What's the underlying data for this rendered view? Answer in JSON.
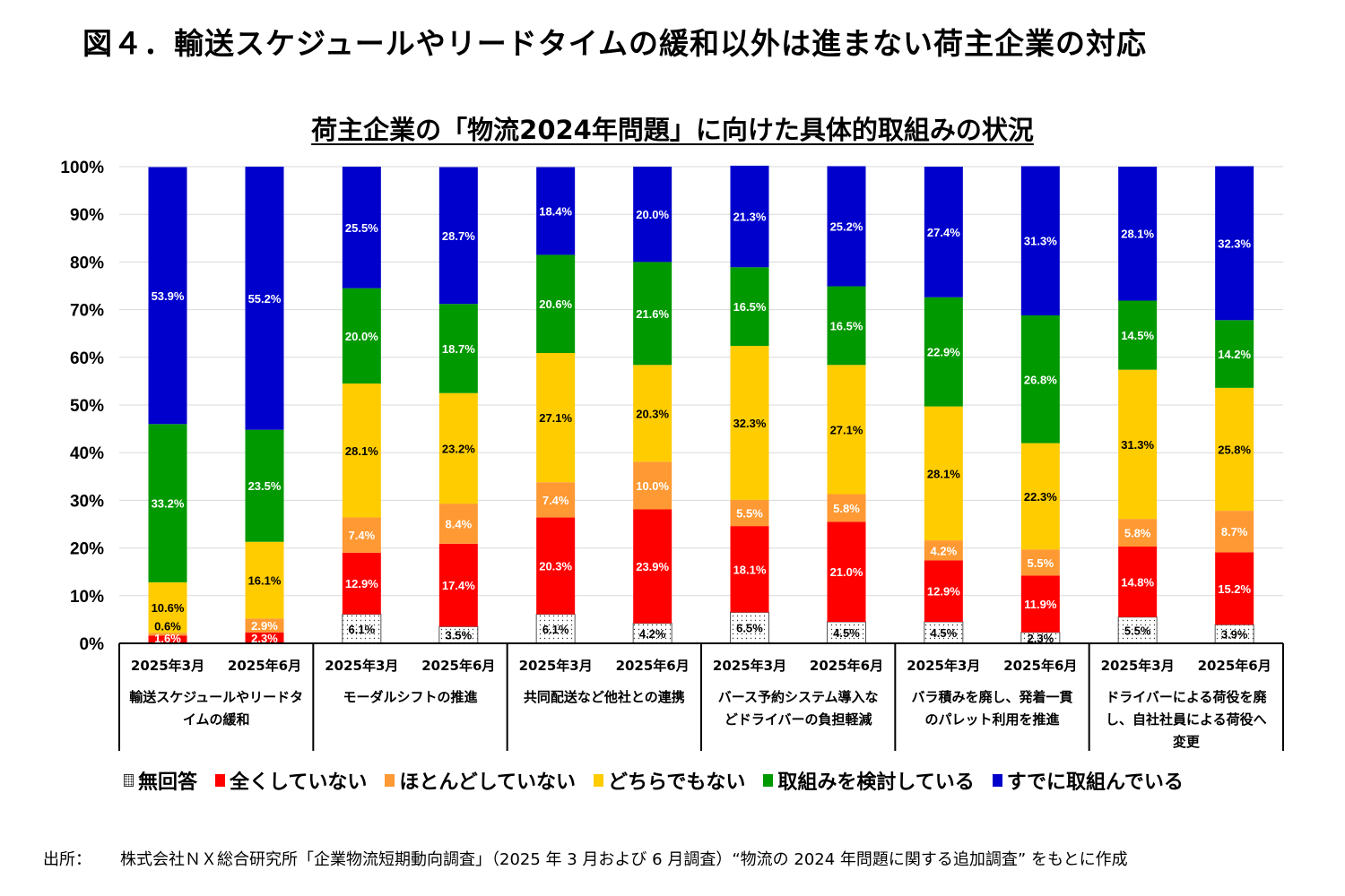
{
  "figure_title": "図４．輸送スケジュールやリードタイムの緩和以外は進まない荷主企業の対応",
  "source": {
    "label": "出所：",
    "text": "株式会社ＮＸ総合研究所「企業物流短期動向調査」（2025 年 3 月および 6 月調査）“物流の 2024 年問題に関する追加調査” をもとに作成"
  },
  "chart_data": {
    "type": "bar",
    "stacked": true,
    "percent_stacked": true,
    "title": "荷主企業の「物流2024年問題」に向けた具体的取組みの状況",
    "xlabel": "",
    "ylabel": "",
    "ylim": [
      0,
      100
    ],
    "yticks": [
      "0%",
      "10%",
      "20%",
      "30%",
      "40%",
      "50%",
      "60%",
      "70%",
      "80%",
      "90%",
      "100%"
    ],
    "grid": true,
    "legend_position": "bottom",
    "groups": [
      {
        "label": "輸送スケジュールやリードタイムの緩和",
        "label_lines": [
          "輸送スケジュールやリードタ",
          "イムの緩和"
        ]
      },
      {
        "label": "モーダルシフトの推進",
        "label_lines": [
          "モーダルシフトの推進"
        ]
      },
      {
        "label": "共同配送など他社との連携",
        "label_lines": [
          "共同配送など他社との連携"
        ]
      },
      {
        "label": "バース予約システム導入などドライバーの負担軽減",
        "label_lines": [
          "バース予約システム導入な",
          "どドライバーの負担軽減"
        ]
      },
      {
        "label": "バラ積みを廃し、発着一貫のパレット利用を推進",
        "label_lines": [
          "バラ積みを廃し、発着一貫",
          "のパレット利用を推進"
        ]
      },
      {
        "label": "ドライバーによる荷役を廃し、自社社員による荷役へ変更",
        "label_lines": [
          "ドライバーによる荷役を廃",
          "し、自社社員による荷役へ",
          "変更"
        ]
      }
    ],
    "periods": [
      "2025年3月",
      "2025年6月"
    ],
    "categories": [
      "輸送スケジュールやリードタイムの緩和 2025年3月",
      "輸送スケジュールやリードタイムの緩和 2025年6月",
      "モーダルシフトの推進 2025年3月",
      "モーダルシフトの推進 2025年6月",
      "共同配送など他社との連携 2025年3月",
      "共同配送など他社との連携 2025年6月",
      "バース予約システム導入などドライバーの負担軽減 2025年3月",
      "バース予約システム導入などドライバーの負担軽減 2025年6月",
      "バラ積みを廃し、発着一貫のパレット利用を推進 2025年3月",
      "バラ積みを廃し、発着一貫のパレット利用を推進 2025年6月",
      "ドライバーによる荷役を廃し、自社社員による荷役へ変更 2025年3月",
      "ドライバーによる荷役を廃し、自社社員による荷役へ変更 2025年6月"
    ],
    "series": [
      {
        "name": "無回答",
        "color": "#ffffff",
        "pattern": "dots",
        "label_color": "#000000",
        "values": [
          0,
          0,
          6.1,
          3.5,
          6.1,
          4.2,
          6.5,
          4.5,
          4.5,
          2.3,
          5.5,
          3.9
        ],
        "labels": [
          "",
          "",
          "6.1%",
          "3.5%",
          "6.1%",
          "4.2%",
          "6.5%",
          "4.5%",
          "4.5%",
          "2.3%",
          "5.5%",
          "3.9%"
        ]
      },
      {
        "name": "全くしていない",
        "color": "#ff0000",
        "label_color": "#ffffff",
        "values": [
          1.6,
          2.3,
          12.9,
          17.4,
          20.3,
          23.9,
          18.1,
          21.0,
          12.9,
          11.9,
          14.8,
          15.2
        ],
        "labels": [
          "1.6%",
          "2.3%",
          "12.9%",
          "17.4%",
          "20.3%",
          "23.9%",
          "18.1%",
          "21.0%",
          "12.9%",
          "11.9%",
          "14.8%",
          "15.2%"
        ]
      },
      {
        "name": "ほとんどしていない",
        "color": "#ff9933",
        "label_color": "#ffffff",
        "values": [
          0.6,
          2.9,
          7.4,
          8.4,
          7.4,
          10.0,
          5.5,
          5.8,
          4.2,
          5.5,
          5.8,
          8.7
        ],
        "labels": [
          "0.6%",
          "2.9%",
          "7.4%",
          "8.4%",
          "7.4%",
          "10.0%",
          "5.5%",
          "5.8%",
          "4.2%",
          "5.5%",
          "5.8%",
          "8.7%"
        ]
      },
      {
        "name": "どちらでもない",
        "color": "#ffcc00",
        "label_color": "#000000",
        "values": [
          10.6,
          16.1,
          28.1,
          23.2,
          27.1,
          20.3,
          32.3,
          27.1,
          28.1,
          22.3,
          31.3,
          25.8
        ],
        "labels": [
          "10.6%",
          "16.1%",
          "28.1%",
          "23.2%",
          "27.1%",
          "20.3%",
          "32.3%",
          "27.1%",
          "28.1%",
          "22.3%",
          "31.3%",
          "25.8%"
        ]
      },
      {
        "name": "取組みを検討している",
        "color": "#009900",
        "label_color": "#ffffff",
        "values": [
          33.2,
          23.5,
          20.0,
          18.7,
          20.6,
          21.6,
          16.5,
          16.5,
          22.9,
          26.8,
          14.5,
          14.2
        ],
        "labels": [
          "33.2%",
          "23.5%",
          "20.0%",
          "18.7%",
          "20.6%",
          "21.6%",
          "16.5%",
          "16.5%",
          "22.9%",
          "26.8%",
          "14.5%",
          "14.2%"
        ]
      },
      {
        "name": "すでに取組んでいる",
        "color": "#0000cc",
        "label_color": "#ffffff",
        "values": [
          53.9,
          55.2,
          25.5,
          28.7,
          18.4,
          20.0,
          21.3,
          25.2,
          27.4,
          31.3,
          28.1,
          32.3
        ],
        "labels": [
          "53.9%",
          "55.2%",
          "25.5%",
          "28.7%",
          "18.4%",
          "20.0%",
          "21.3%",
          "25.2%",
          "27.4%",
          "31.3%",
          "28.1%",
          "32.3%"
        ]
      }
    ]
  }
}
